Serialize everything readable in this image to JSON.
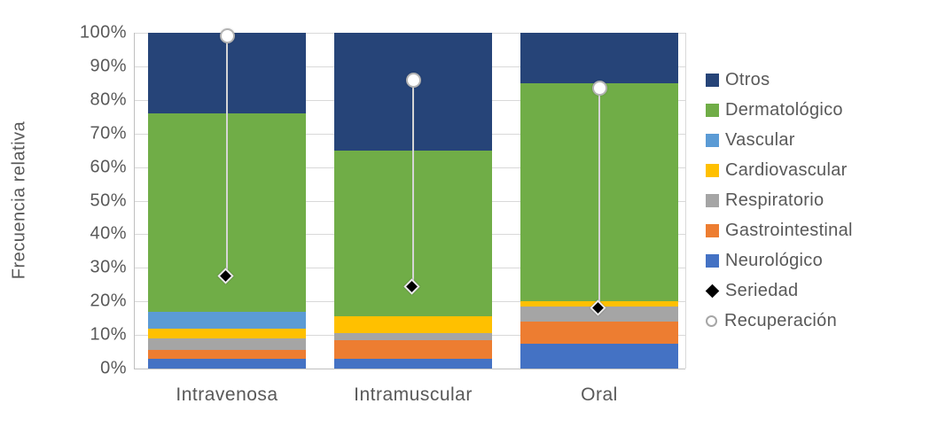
{
  "chart_data": {
    "type": "bar",
    "subtype": "stacked-100-with-point-markers",
    "title": "",
    "ylabel": "Frecuencia relativa",
    "xlabel": "",
    "categories": [
      "Intravenosa",
      "Intramuscular",
      "Oral"
    ],
    "y_axis": {
      "min": 0,
      "max": 100,
      "step": 10,
      "tick_labels": [
        "0%",
        "10%",
        "20%",
        "30%",
        "40%",
        "50%",
        "60%",
        "70%",
        "80%",
        "90%",
        "100%"
      ]
    },
    "grid": "horizontal",
    "legend_position": "right",
    "series": [
      {
        "name": "Neurológico",
        "color": "#4472C4",
        "values": [
          3,
          3,
          7.5
        ]
      },
      {
        "name": "Gastrointestinal",
        "color": "#ED7D31",
        "values": [
          2.5,
          5.5,
          6.5
        ]
      },
      {
        "name": "Respiratorio",
        "color": "#A5A5A5",
        "values": [
          3.5,
          2,
          4.5
        ]
      },
      {
        "name": "Cardiovascular",
        "color": "#FFC000",
        "values": [
          3,
          5,
          1.5
        ]
      },
      {
        "name": "Vascular",
        "color": "#5B9BD5",
        "values": [
          5,
          0,
          0
        ]
      },
      {
        "name": "Dermatológico",
        "color": "#70AD47",
        "values": [
          59,
          49.5,
          65
        ]
      },
      {
        "name": "Otros",
        "color": "#264478",
        "values": [
          24,
          35,
          15
        ]
      }
    ],
    "markers": [
      {
        "name": "Seriedad",
        "shape": "diamond",
        "fill": "#000000",
        "outline": "#ECECEC",
        "values": [
          27,
          24,
          17.5
        ]
      },
      {
        "name": "Recuperación",
        "shape": "circle",
        "fill": "#FFFFFF",
        "outline": "#B3B3B3",
        "values": [
          99,
          86,
          83.5
        ]
      }
    ],
    "legend_items": [
      {
        "label": "Otros",
        "swatch": "square",
        "color": "#264478"
      },
      {
        "label": "Dermatológico",
        "swatch": "square",
        "color": "#70AD47"
      },
      {
        "label": "Vascular",
        "swatch": "square",
        "color": "#5B9BD5"
      },
      {
        "label": "Cardiovascular",
        "swatch": "square",
        "color": "#FFC000"
      },
      {
        "label": "Respiratorio",
        "swatch": "square",
        "color": "#A5A5A5"
      },
      {
        "label": "Gastrointestinal",
        "swatch": "square",
        "color": "#ED7D31"
      },
      {
        "label": "Neurológico",
        "swatch": "square",
        "color": "#4472C4"
      },
      {
        "label": "Seriedad",
        "swatch": "diamond",
        "color": "#000000"
      },
      {
        "label": "Recuperación",
        "swatch": "circle-outline",
        "color": "#FFFFFF"
      }
    ],
    "colors": {
      "gridline": "#D9D9D9",
      "axis_line": "#BFBFBF",
      "text": "#595959",
      "connector_line": "#D5D5D5"
    }
  }
}
